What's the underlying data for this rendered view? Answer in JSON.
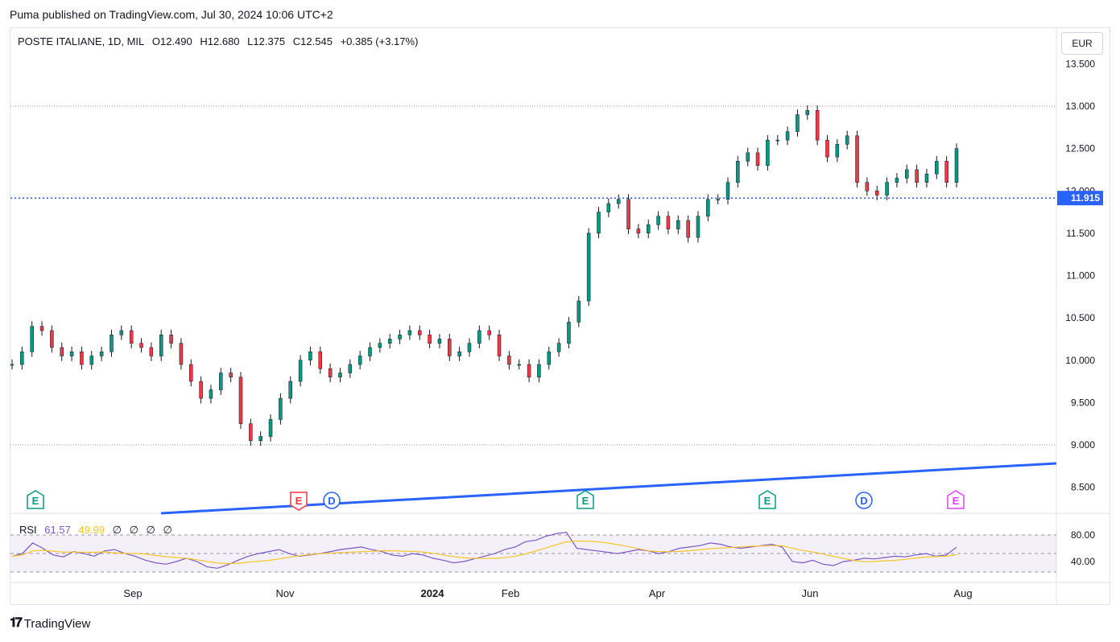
{
  "header": {
    "publisher_line": "Puma published on TradingView.com, Jul 30, 2024 10:06 UTC+2"
  },
  "legend": {
    "symbol": "POSTE ITALIANE, 1D, MIL",
    "open": "O12.490",
    "high": "H12.680",
    "low": "L12.375",
    "close": "C12.545",
    "change": "+0.385 (+3.17%)"
  },
  "currency_button": "EUR",
  "price_tag": "11.915",
  "rsi_legend": {
    "label": "RSI",
    "value": "61.57",
    "ma": "49.99",
    "extra": [
      "∅",
      "∅",
      "∅",
      "∅"
    ]
  },
  "footer": {
    "brand": "TradingView"
  },
  "colors": {
    "up": "#089981",
    "down": "#f23645",
    "rsi": "#7e57c2",
    "rsi_ma": "#f7c52b",
    "trendline": "#2962ff",
    "tag": "#2962ff"
  },
  "chart_data": [
    {
      "type": "line",
      "description_of_series": "daily price path (approximate)",
      "x_axis": {
        "tick_labels": [
          "Sep",
          "Nov",
          "2024",
          "Feb",
          "Apr",
          "Jun",
          "Aug"
        ]
      },
      "y_axis": {
        "tick_labels": [
          "13.500",
          "13.000",
          "12.500",
          "12.000",
          "11.500",
          "11.000",
          "10.500",
          "10.000",
          "9.500",
          "9.000",
          "8.500"
        ],
        "ylim": [
          8.2,
          13.7
        ]
      },
      "series": [
        {
          "values": [
            9.95,
            10.1,
            10.4,
            10.35,
            10.15,
            10.05,
            10.1,
            9.95,
            10.05,
            10.1,
            10.3,
            10.35,
            10.2,
            10.15,
            10.05,
            10.3,
            10.2,
            9.95,
            9.75,
            9.55,
            9.65,
            9.85,
            9.8,
            9.25,
            9.05,
            9.1,
            9.3,
            9.55,
            9.75,
            10.0,
            10.1,
            9.9,
            9.8,
            9.85,
            9.95,
            10.05,
            10.15,
            10.2,
            10.25,
            10.3,
            10.35,
            10.3,
            10.2,
            10.25,
            10.05,
            10.1,
            10.2,
            10.35,
            10.3,
            10.05,
            9.95,
            9.95,
            9.8,
            9.95,
            10.1,
            10.2,
            10.45,
            10.7,
            11.5,
            11.75,
            11.85,
            11.9,
            11.55,
            11.5,
            11.6,
            11.7,
            11.55,
            11.65,
            11.45,
            11.7,
            11.9,
            11.9,
            12.1,
            12.35,
            12.45,
            12.3,
            12.6,
            12.6,
            12.7,
            12.9,
            12.95,
            12.6,
            12.4,
            12.55,
            12.65,
            12.1,
            12.0,
            11.95,
            12.1,
            12.15,
            12.25,
            12.1,
            12.2,
            12.35,
            12.1,
            12.5
          ]
        }
      ],
      "price_reference_line": 11.915,
      "dotted_levels": [
        13.0,
        9.0
      ]
    },
    {
      "type": "line",
      "title": "RSI",
      "y_axis": {
        "tick_labels": [
          "80.00",
          "40.00"
        ]
      },
      "series": [
        {
          "name": "RSI",
          "values": [
            48,
            52,
            68,
            60,
            50,
            47,
            55,
            52,
            48,
            56,
            58,
            52,
            48,
            42,
            38,
            36,
            40,
            45,
            40,
            32,
            30,
            35,
            42,
            48,
            52,
            55,
            58,
            52,
            48,
            50,
            52,
            55,
            58,
            60,
            62,
            58,
            55,
            50,
            48,
            52,
            50,
            45,
            42,
            38,
            40,
            44,
            48,
            52,
            58,
            62,
            70,
            72,
            78,
            82,
            84,
            60,
            58,
            56,
            54,
            52,
            55,
            58,
            56,
            52,
            55,
            60,
            62,
            64,
            68,
            66,
            62,
            60,
            62,
            64,
            66,
            62,
            40,
            38,
            42,
            36,
            34,
            40,
            42,
            45,
            44,
            46,
            48,
            47,
            50,
            52,
            48,
            50,
            61.57
          ]
        }
      ]
    }
  ],
  "event_markers": [
    {
      "letter": "E",
      "kind": "earnings"
    },
    {
      "letter": "E",
      "kind": "earnings"
    },
    {
      "letter": "D",
      "kind": "dividend"
    },
    {
      "letter": "E",
      "kind": "earnings"
    },
    {
      "letter": "E",
      "kind": "earnings"
    },
    {
      "letter": "D",
      "kind": "dividend"
    },
    {
      "letter": "E",
      "kind": "earnings"
    }
  ]
}
